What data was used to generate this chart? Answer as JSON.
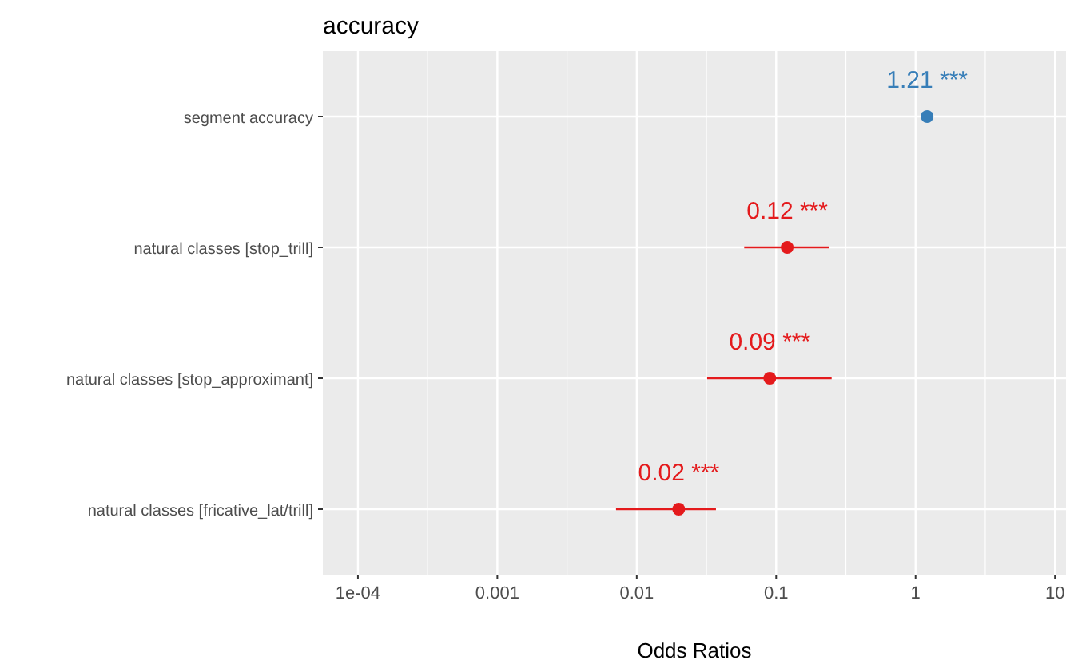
{
  "chart_data": {
    "type": "scatter",
    "title": "accuracy",
    "xlabel": "Odds Ratios",
    "orientation": "horizontal",
    "log": "x",
    "grid": true,
    "marker": "circle",
    "categories": [
      "segment accuracy",
      "natural classes [stop_trill]",
      "natural classes [stop_approximant]",
      "natural classes [fricative_lat/trill]"
    ],
    "values": [
      1.21,
      0.12,
      0.09,
      0.02
    ],
    "colors": [
      "#377eb8",
      "#e41a1c",
      "#e41a1c",
      "#e41a1c"
    ],
    "errors": [
      null,
      [
        0.059,
        0.24
      ],
      [
        0.032,
        0.25
      ],
      [
        0.0071,
        0.037
      ]
    ],
    "value_labels": [
      "1.21 ***",
      "0.12 ***",
      "0.09 ***",
      "0.02 ***"
    ],
    "xlim": [
      5.6e-05,
      12
    ],
    "xticks": [
      {
        "value": 0.0001,
        "label": "1e-04"
      },
      0.001,
      0.01,
      0.1,
      1,
      10
    ]
  }
}
